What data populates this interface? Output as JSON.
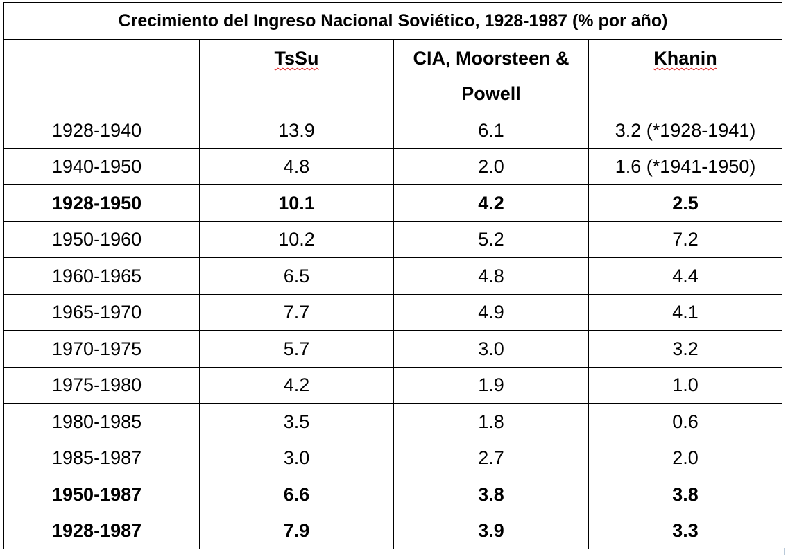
{
  "table": {
    "title": "Crecimiento del Ingreso Nacional Soviético, 1928-1987 (% por año)",
    "headers": {
      "period": "",
      "tssu": "TsSu",
      "cia_line1": "CIA, Moorsteen &",
      "cia_line2": "Powell",
      "khanin": "Khanin"
    },
    "rows": [
      {
        "period": "1928-1940",
        "tssu": "13.9",
        "cia": "6.1",
        "khanin": "3.2 (*1928-1941)",
        "bold": false
      },
      {
        "period": "1940-1950",
        "tssu": "4.8",
        "cia": "2.0",
        "khanin": "1.6 (*1941-1950)",
        "bold": false
      },
      {
        "period": "1928-1950",
        "tssu": "10.1",
        "cia": "4.2",
        "khanin": "2.5",
        "bold": true
      },
      {
        "period": "1950-1960",
        "tssu": "10.2",
        "cia": "5.2",
        "khanin": "7.2",
        "bold": false
      },
      {
        "period": "1960-1965",
        "tssu": "6.5",
        "cia": "4.8",
        "khanin": "4.4",
        "bold": false
      },
      {
        "period": "1965-1970",
        "tssu": "7.7",
        "cia": "4.9",
        "khanin": "4.1",
        "bold": false
      },
      {
        "period": "1970-1975",
        "tssu": "5.7",
        "cia": "3.0",
        "khanin": "3.2",
        "bold": false
      },
      {
        "period": "1975-1980",
        "tssu": "4.2",
        "cia": "1.9",
        "khanin": "1.0",
        "bold": false
      },
      {
        "period": "1980-1985",
        "tssu": "3.5",
        "cia": "1.8",
        "khanin": "0.6",
        "bold": false
      },
      {
        "period": "1985-1987",
        "tssu": "3.0",
        "cia": "2.7",
        "khanin": "2.0",
        "bold": false
      },
      {
        "period": "1950-1987",
        "tssu": "6.6",
        "cia": "3.8",
        "khanin": "3.8",
        "bold": true
      },
      {
        "period": "1928-1987",
        "tssu": "7.9",
        "cia": "3.9",
        "khanin": "3.3",
        "bold": true
      }
    ]
  }
}
